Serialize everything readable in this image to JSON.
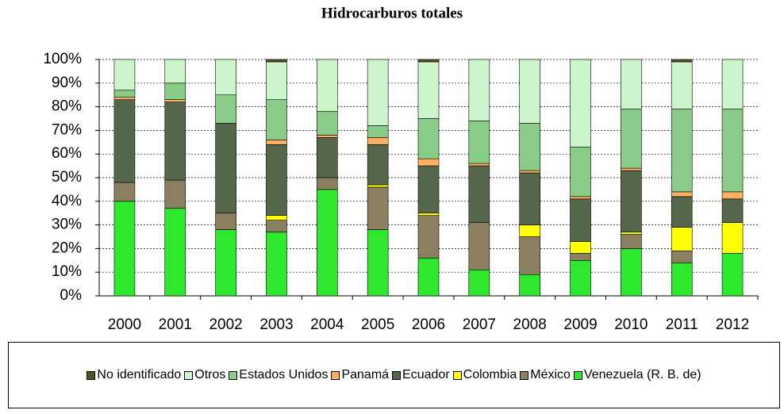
{
  "chart_data": {
    "type": "bar",
    "stacked": true,
    "title": "Hidrocarburos totales",
    "categories": [
      "2000",
      "2001",
      "2002",
      "2003",
      "2004",
      "2005",
      "2006",
      "2007",
      "2008",
      "2009",
      "2010",
      "2011",
      "2012"
    ],
    "series": [
      {
        "name": "Venezuela (R. B. de)",
        "color": "#2ee82e",
        "values": [
          40,
          37,
          28,
          27,
          45,
          28,
          16,
          11,
          9,
          15,
          20,
          14,
          18
        ]
      },
      {
        "name": "México",
        "color": "#8a8060",
        "values": [
          8,
          12,
          7,
          5,
          5,
          18,
          18,
          20,
          16,
          3,
          6,
          5,
          0
        ]
      },
      {
        "name": "Colombia",
        "color": "#ffff00",
        "values": [
          0,
          0,
          0,
          2,
          0,
          1,
          1,
          0,
          5,
          5,
          1,
          10,
          13
        ]
      },
      {
        "name": "Ecuador",
        "color": "#56664a",
        "values": [
          35,
          33,
          38,
          30,
          17,
          17,
          20,
          24,
          22,
          18,
          26,
          13,
          10
        ]
      },
      {
        "name": "Panamá",
        "color": "#ffb060",
        "values": [
          1,
          1,
          0,
          2,
          1,
          3,
          3,
          1,
          1,
          1,
          1,
          2,
          3
        ]
      },
      {
        "name": "Estados Unidos",
        "color": "#88cc88",
        "values": [
          3,
          7,
          12,
          17,
          10,
          5,
          17,
          18,
          20,
          21,
          25,
          35,
          35
        ]
      },
      {
        "name": "Otros",
        "color": "#ccf5cc",
        "values": [
          13,
          10,
          15,
          16,
          22,
          28,
          24,
          26,
          27,
          37,
          21,
          20,
          21
        ]
      },
      {
        "name": "No identificado",
        "color": "#555522",
        "values": [
          0,
          0,
          0,
          1,
          0,
          0,
          1,
          0,
          0,
          0,
          0,
          1,
          0
        ]
      }
    ],
    "ylim": [
      0,
      100
    ],
    "yticks": [
      {
        "value": 0,
        "label": "0%"
      },
      {
        "value": 10,
        "label": "10%"
      },
      {
        "value": 20,
        "label": "20%"
      },
      {
        "value": 30,
        "label": "30%"
      },
      {
        "value": 40,
        "label": "40%"
      },
      {
        "value": 50,
        "label": "50%"
      },
      {
        "value": 60,
        "label": "60%"
      },
      {
        "value": 70,
        "label": "70%"
      },
      {
        "value": 80,
        "label": "80%"
      },
      {
        "value": 90,
        "label": "90%"
      },
      {
        "value": 100,
        "label": "100%"
      }
    ],
    "grid": true
  }
}
